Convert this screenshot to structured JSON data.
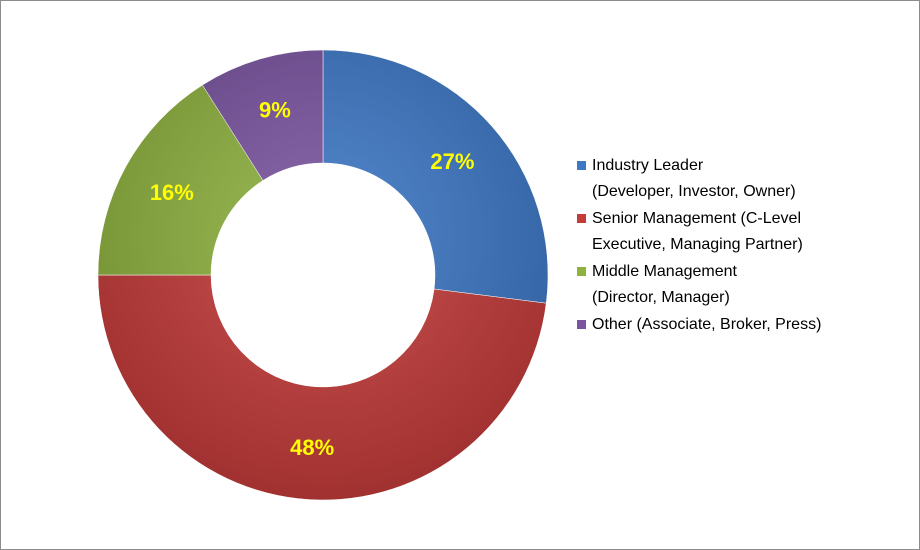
{
  "chart_data": {
    "type": "pie",
    "variant": "doughnut",
    "title": "",
    "categories": [
      "Industry Leader (Developer, Investor, Owner)",
      "Senior Management (C-Level Executive, Managing Partner)",
      "Middle Management (Director, Manager)",
      "Other (Associate, Broker, Press)"
    ],
    "values": [
      27,
      48,
      16,
      9
    ],
    "data_labels": [
      "27%",
      "48%",
      "16%",
      "9%"
    ],
    "colors": [
      "#3d78c6",
      "#c43c3a",
      "#8fb23f",
      "#7a54a0"
    ],
    "label_color": "#ffff00",
    "legend_position": "right",
    "legend": [
      {
        "lines": [
          "Industry Leader",
          "(Developer, Investor, Owner)"
        ],
        "color": "#3d78c6"
      },
      {
        "lines": [
          "Senior Management (C-Level",
          "Executive, Managing Partner)"
        ],
        "color": "#c43c3a"
      },
      {
        "lines": [
          "Middle Management",
          "(Director, Manager)"
        ],
        "color": "#8fb23f"
      },
      {
        "lines": [
          "Other (Associate, Broker, Press)"
        ],
        "color": "#7a54a0"
      }
    ]
  }
}
